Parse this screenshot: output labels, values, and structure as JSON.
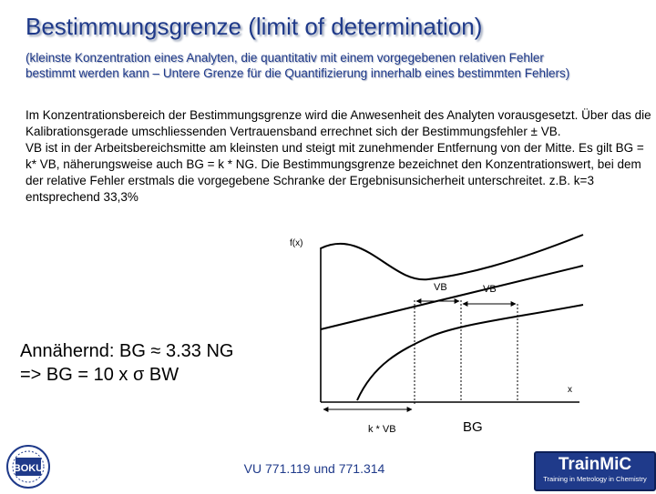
{
  "slide": {
    "title": "Bestimmungsgrenze (limit of determination)",
    "subtitle": "(kleinste Konzentration eines Analyten, die quantitativ mit einem vorgegebenen relativen Fehler bestimmt werden kann – Untere Grenze für die Quantifizierung innerhalb eines bestimmten Fehlers)",
    "paragraphs": [
      "Im Konzentrationsbereich der Bestimmungsgrenze wird die Anwesenheit des Analyten vorausgesetzt. Über das die Kalibrationsgerade umschliessenden Vertrauensband errechnet sich  der Bestimmungsfehler ± VB.",
      "VB ist in der Arbeitsbereichsmitte am kleinsten und steigt mit zunehmender Entfernung von der Mitte. Es gilt BG = k* VB, näherungsweise auch BG = k * NG. Die Bestimmungsgrenze bezeichnet den Konzentrationswert, bei dem der relative Fehler erstmals die vorgegebene Schranke der Ergebnisunsicherheit unterschreitet.  z.B. k=3 entsprechend 33,3%"
    ],
    "approx_lines": [
      "Annähernd: BG ≈ 3.33 NG",
      "=> BG = 10 x σ BW"
    ],
    "footer": "VU 771.119 und 771.314"
  },
  "graph": {
    "y_axis_label": "f(x)",
    "x_axis_label": "x",
    "vb_label_1": "VB",
    "vb_label_2": "VB",
    "kvb_label": "k * VB",
    "bg_label": "BG"
  },
  "logos": {
    "left_icon": "boku-university-logo",
    "left_text": "BOKU",
    "right_name": "TrainMiC",
    "right_tagline": "Training in Metrology in Chemistry",
    "right_color": "#1f3a8a"
  }
}
